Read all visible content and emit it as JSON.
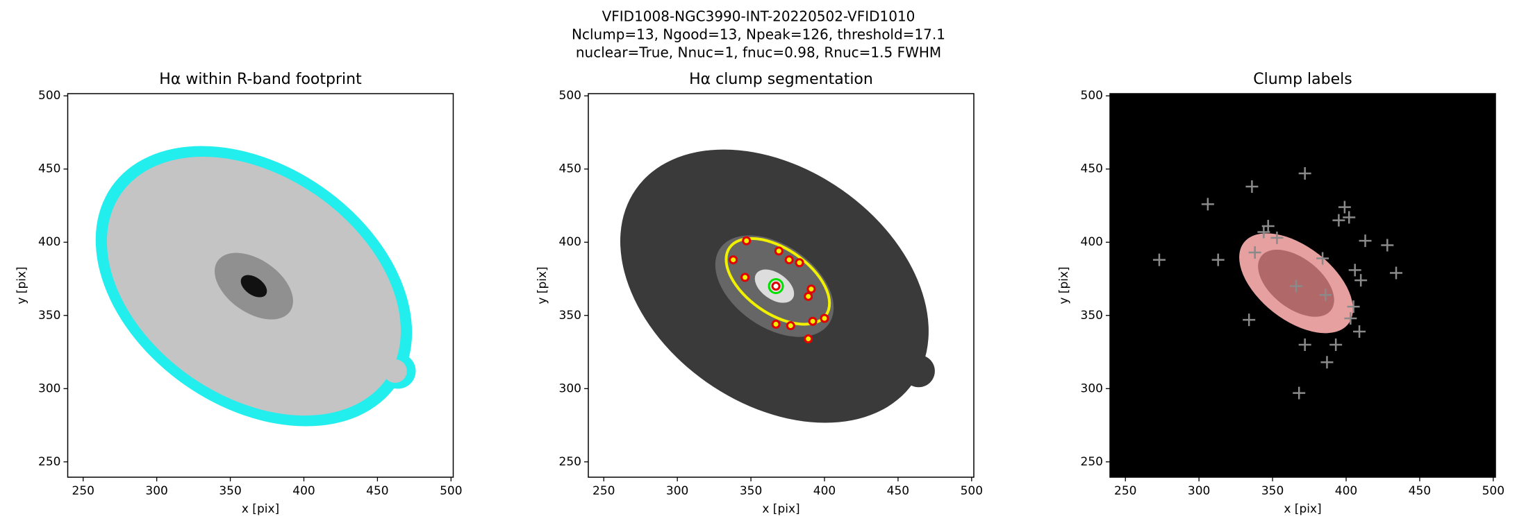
{
  "title": [
    "VFID1008-NGC3990-INT-20220502-VFID1010",
    "Nclump=13, Ngood=13, Npeak=126, threshold=17.1",
    "nuclear=True, Nnuc=1, fnuc=0.98, Rnuc=1.5 FWHM"
  ],
  "chart_data": [
    {
      "type": "image",
      "title": "Hα within R-band footprint",
      "xlabel": "x [pix]",
      "ylabel": "y [pix]",
      "xlim": [
        239.5,
        501.5
      ],
      "ylim": [
        239.5,
        501.5
      ],
      "xticks": [
        250,
        300,
        350,
        400,
        450,
        500
      ],
      "yticks": [
        250,
        300,
        350,
        400,
        450,
        500
      ]
    },
    {
      "type": "image",
      "title": "Hα clump segmentation",
      "xlabel": "x [pix]",
      "ylabel": "y [pix]",
      "xlim": [
        239.5,
        501.5
      ],
      "ylim": [
        239.5,
        501.5
      ],
      "xticks": [
        250,
        300,
        350,
        400,
        450,
        500
      ],
      "yticks": [
        250,
        300,
        350,
        400,
        450,
        500
      ],
      "markers": {
        "color": "#e00000",
        "x": [
          347,
          338,
          346,
          369,
          376,
          389,
          391,
          367,
          377,
          392,
          400,
          389,
          383
        ],
        "y": [
          401,
          388,
          376,
          394,
          388,
          363,
          368,
          344,
          343,
          346,
          348,
          334,
          386
        ]
      },
      "nucleus": {
        "color": "#00e000",
        "x": 367,
        "y": 370
      }
    },
    {
      "type": "image",
      "title": "Clump labels",
      "xlabel": "x [pix]",
      "ylabel": "y [pix]",
      "xlim": [
        239.5,
        501.5
      ],
      "ylim": [
        239.5,
        501.5
      ],
      "xticks": [
        250,
        300,
        350,
        400,
        450,
        500
      ],
      "yticks": [
        250,
        300,
        350,
        400,
        450,
        500
      ],
      "markers": {
        "color": "#8a8a8a",
        "x": [
          336,
          372,
          306,
          399,
          402,
          395,
          413,
          428,
          434,
          410,
          273,
          313,
          338,
          347,
          344,
          353,
          366,
          387,
          334,
          372,
          393,
          409,
          403,
          384,
          406,
          386,
          405,
          368
        ],
        "y": [
          438,
          447,
          426,
          424,
          417,
          415,
          401,
          398,
          379,
          374,
          388,
          388,
          393,
          411,
          407,
          403,
          370,
          318,
          347,
          330,
          330,
          339,
          348,
          389,
          381,
          364,
          356,
          297
        ]
      }
    }
  ]
}
